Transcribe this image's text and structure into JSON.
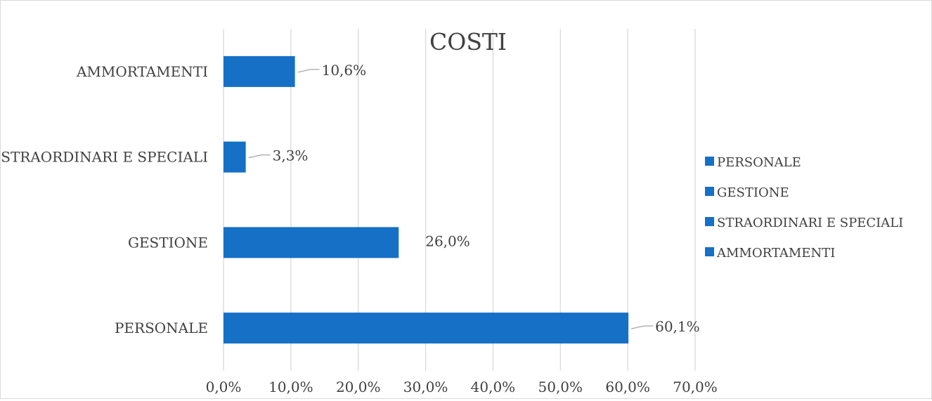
{
  "chart_data": {
    "type": "bar",
    "orientation": "horizontal",
    "title": "COSTI",
    "categories": [
      "PERSONALE",
      "GESTIONE",
      "STRAORDINARI E SPECIALI",
      "AMMORTAMENTI"
    ],
    "values": [
      60.1,
      26.0,
      3.3,
      10.6
    ],
    "value_labels": [
      "60,1%",
      "26,0%",
      "3,3%",
      "10,6%"
    ],
    "xlim": [
      0,
      70
    ],
    "x_ticks": [
      0,
      10,
      20,
      30,
      40,
      50,
      60,
      70
    ],
    "x_tick_labels": [
      "0,0%",
      "10,0%",
      "20,0%",
      "30,0%",
      "40,0%",
      "50,0%",
      "60,0%",
      "70,0%"
    ],
    "xlabel": "",
    "ylabel": "",
    "grid": "vertical",
    "legend": {
      "placement": "right",
      "entries": [
        "PERSONALE",
        "GESTIONE",
        "STRAORDINARI E SPECIALI",
        "AMMORTAMENTI"
      ]
    },
    "colors": {
      "bar": "#1570c6",
      "grid": "#d9d9d9",
      "text": "#404040",
      "leader": "#a6a6a6"
    }
  }
}
